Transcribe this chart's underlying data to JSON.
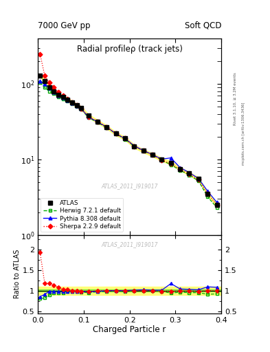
{
  "title_main": "Radial profileρ (track jets)",
  "title_top_left": "7000 GeV pp",
  "title_top_right": "Soft QCD",
  "xlabel": "Charged Particle r",
  "ylabel_ratio": "Ratio to ATLAS",
  "watermark": "ATLAS_2011_I919017",
  "right_label_top": "Rivet 3.1.10, ≥ 3.2M events",
  "right_label_bot": "mcplots.cern.ch [arXiv:1306.3436]",
  "r_vals": [
    0.005,
    0.015,
    0.025,
    0.035,
    0.045,
    0.055,
    0.065,
    0.075,
    0.085,
    0.095,
    0.11,
    0.13,
    0.15,
    0.17,
    0.19,
    0.21,
    0.23,
    0.25,
    0.27,
    0.29,
    0.31,
    0.33,
    0.35,
    0.37,
    0.39
  ],
  "atlas_y": [
    130,
    110,
    90,
    80,
    72,
    68,
    62,
    57,
    52,
    48,
    38,
    32,
    27,
    22,
    19,
    15,
    13,
    11.5,
    10,
    9,
    7.5,
    6.5,
    5.5,
    3.5,
    2.5
  ],
  "atlas_yerr": [
    5,
    4,
    3.5,
    3,
    2.8,
    2.5,
    2.2,
    2,
    1.8,
    1.7,
    1.3,
    1.1,
    0.9,
    0.8,
    0.7,
    0.55,
    0.48,
    0.42,
    0.36,
    0.32,
    0.27,
    0.23,
    0.2,
    0.13,
    0.1
  ],
  "herwig_y": [
    105,
    90,
    80,
    75,
    68,
    64,
    60,
    55,
    50,
    46,
    36,
    31,
    26.5,
    22,
    18.5,
    15,
    13,
    11.5,
    9.8,
    8.5,
    7.2,
    6.2,
    5.2,
    3.2,
    2.3
  ],
  "herwig_ratio": [
    0.81,
    0.82,
    0.89,
    0.94,
    0.94,
    0.94,
    0.97,
    0.97,
    0.97,
    0.96,
    0.95,
    0.97,
    0.98,
    1.0,
    0.97,
    1.0,
    1.0,
    1.0,
    0.98,
    0.94,
    0.96,
    0.95,
    0.95,
    0.91,
    0.92
  ],
  "pythia_y": [
    110,
    100,
    88,
    78,
    70,
    66,
    61,
    56,
    51,
    47,
    37,
    31.5,
    27,
    22,
    19,
    15.2,
    13.2,
    11.6,
    10.1,
    10.5,
    7.8,
    6.7,
    5.6,
    3.8,
    2.7
  ],
  "pythia_ratio": [
    0.85,
    0.91,
    0.98,
    0.98,
    0.97,
    0.97,
    0.98,
    0.98,
    0.98,
    0.98,
    0.97,
    0.98,
    1.0,
    1.0,
    1.0,
    1.01,
    1.02,
    1.01,
    1.01,
    1.17,
    1.04,
    1.03,
    1.02,
    1.09,
    1.08
  ],
  "sherpa_y": [
    250,
    130,
    105,
    90,
    78,
    70,
    63,
    57,
    52,
    47,
    37,
    32,
    27,
    22,
    19,
    15,
    13,
    11.5,
    9.8,
    8.8,
    7.4,
    6.4,
    5.4,
    3.5,
    2.5
  ],
  "sherpa_ratio": [
    1.92,
    1.18,
    1.17,
    1.13,
    1.08,
    1.03,
    1.02,
    1.0,
    1.0,
    0.98,
    0.97,
    1.0,
    1.0,
    1.0,
    1.0,
    1.0,
    1.0,
    1.0,
    0.98,
    0.98,
    0.99,
    0.99,
    0.98,
    1.0,
    1.0
  ],
  "atlas_color": "#000000",
  "herwig_color": "#00aa00",
  "pythia_color": "#0000ff",
  "sherpa_color": "#ff0000",
  "band_yellow": "#ffff66",
  "band_green": "#00cc00",
  "ylim_main": [
    1.0,
    400
  ],
  "ylim_ratio": [
    0.45,
    2.35
  ],
  "xlim": [
    0.0,
    0.4
  ]
}
